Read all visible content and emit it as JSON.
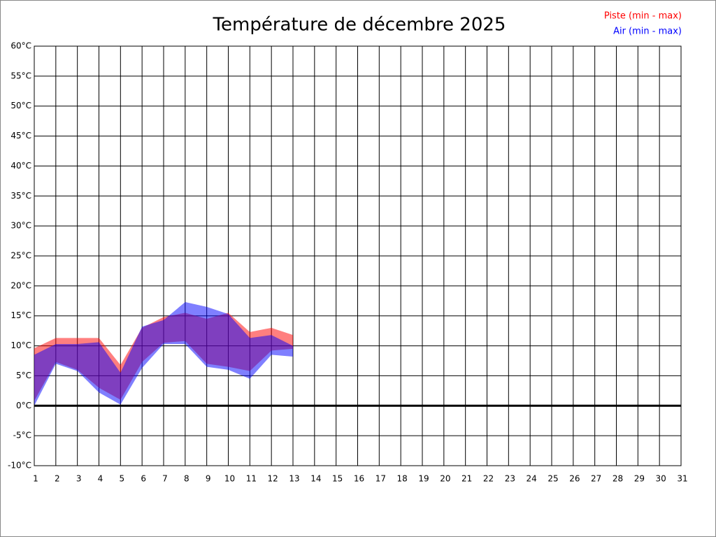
{
  "chart_data": {
    "type": "range_area",
    "title": "Température de décembre 2025",
    "x": [
      1,
      2,
      3,
      4,
      5,
      6,
      7,
      8,
      9,
      10,
      11,
      12,
      13
    ],
    "series": [
      {
        "name": "Piste (min - max)",
        "color": "#ff0000",
        "low": [
          0.8,
          7.3,
          6.0,
          3.0,
          1.0,
          7.3,
          10.5,
          10.8,
          7.0,
          6.5,
          5.8,
          9.2,
          9.5
        ],
        "high": [
          9.6,
          11.3,
          11.3,
          11.3,
          6.8,
          13.0,
          14.8,
          15.5,
          14.5,
          15.5,
          12.3,
          13.0,
          11.8
        ]
      },
      {
        "name": "Air (min - max)",
        "color": "#0000ff",
        "low": [
          0,
          7.0,
          5.8,
          2.2,
          0.2,
          6.3,
          10.3,
          10.3,
          6.5,
          6.0,
          4.5,
          8.5,
          8.2
        ],
        "high": [
          8.5,
          10.3,
          10.3,
          10.6,
          5.5,
          13.2,
          14.3,
          17.3,
          16.5,
          15.3,
          11.3,
          11.8,
          10.0
        ]
      }
    ],
    "xlim": [
      1,
      31
    ],
    "xticks": [
      1,
      2,
      3,
      4,
      5,
      6,
      7,
      8,
      9,
      10,
      11,
      12,
      13,
      14,
      15,
      16,
      17,
      18,
      19,
      20,
      21,
      22,
      23,
      24,
      25,
      26,
      27,
      28,
      29,
      30,
      31
    ],
    "ylim": [
      -10,
      60
    ],
    "yticks": [
      {
        "value": -10,
        "label": "-10°C"
      },
      {
        "value": -5,
        "label": "-5°C"
      },
      {
        "value": 0,
        "label": "0°C"
      },
      {
        "value": 5,
        "label": "5°C"
      },
      {
        "value": 10,
        "label": "10°C"
      },
      {
        "value": 15,
        "label": "15°C"
      },
      {
        "value": 20,
        "label": "20°C"
      },
      {
        "value": 25,
        "label": "25°C"
      },
      {
        "value": 30,
        "label": "30°C"
      },
      {
        "value": 35,
        "label": "35°C"
      },
      {
        "value": 40,
        "label": "40°C"
      },
      {
        "value": 45,
        "label": "45°C"
      },
      {
        "value": 50,
        "label": "50°C"
      },
      {
        "value": 55,
        "label": "55°C"
      },
      {
        "value": 60,
        "label": "60°C"
      }
    ],
    "grid": true,
    "legend": "top-right"
  }
}
